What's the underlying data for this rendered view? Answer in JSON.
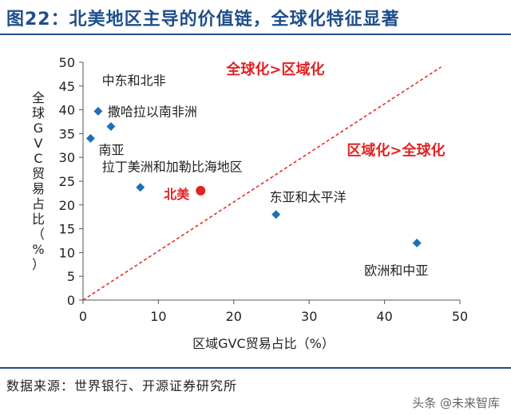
{
  "header": {
    "title": "图22：北美地区主导的价值链，全球化特征显著"
  },
  "chart_data": {
    "type": "scatter",
    "xlabel": "区域GVC贸易占比（%）",
    "ylabel": "全球GVC贸易占比（%）",
    "xlim": [
      0,
      50
    ],
    "ylim": [
      0,
      50
    ],
    "xticks": [
      "0",
      "10",
      "20",
      "30",
      "40",
      "50"
    ],
    "yticks": [
      "0",
      "5",
      "10",
      "15",
      "20",
      "25",
      "30",
      "35",
      "40",
      "45",
      "50"
    ],
    "grid": false,
    "series": [
      {
        "color": "#1f6fb8",
        "marker": "diamond",
        "points": [
          {
            "x": 2.0,
            "y": 39.7,
            "label": "撒哈拉以南非洲"
          },
          {
            "x": 3.7,
            "y": 36.5,
            "label": ""
          },
          {
            "x": 1.0,
            "y": 34.0,
            "label": "南亚"
          },
          {
            "x": 7.6,
            "y": 23.7,
            "label": "拉丁美洲和加勒比海地区"
          },
          {
            "x": 25.6,
            "y": 18.0,
            "label": "东亚和太平洋"
          },
          {
            "x": 44.3,
            "y": 12.0,
            "label": "欧洲和中亚"
          }
        ]
      },
      {
        "color": "#e32222",
        "marker": "circle",
        "points": [
          {
            "x": 15.6,
            "y": 23.0,
            "label": "北美"
          }
        ]
      }
    ],
    "annotations": [
      {
        "text": "中东和北非",
        "x": 2.5,
        "y": 46.2
      },
      {
        "text": "全球化>区域化",
        "x": 19.0,
        "y": 48.5,
        "color": "#e32222"
      },
      {
        "text": "区域化>全球化",
        "x": 35.0,
        "y": 31.5,
        "color": "#e32222"
      }
    ],
    "reference_line": {
      "from": [
        0,
        0
      ],
      "to": [
        47.5,
        49.0
      ],
      "style": "dashed",
      "color": "#e32222"
    }
  },
  "footer": {
    "source": "数据来源：世界银行、开源证券研究所",
    "watermark": "头条 @未来智库"
  }
}
